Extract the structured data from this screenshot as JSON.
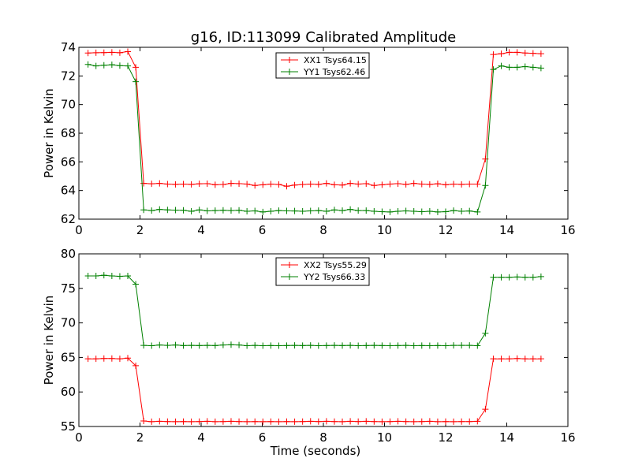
{
  "figure": {
    "title": "g16, ID:113099 Calibrated Amplitude"
  },
  "chart_data": [
    {
      "type": "line",
      "title": "g16, ID:113099 Calibrated Amplitude",
      "xlabel": "",
      "ylabel": "Power in Kelvin",
      "xlim": [
        0,
        16
      ],
      "ylim": [
        62,
        74
      ],
      "xticks": [
        0,
        2,
        4,
        6,
        8,
        10,
        12,
        14,
        16
      ],
      "yticks": [
        62,
        64,
        66,
        68,
        70,
        72,
        74
      ],
      "grid": false,
      "legend_position": "top-center",
      "x": [
        0.3,
        0.56,
        0.82,
        1.08,
        1.34,
        1.6,
        1.86,
        2.12,
        2.38,
        2.64,
        2.9,
        3.16,
        3.42,
        3.68,
        3.94,
        4.2,
        4.46,
        4.72,
        4.98,
        5.24,
        5.5,
        5.76,
        6.02,
        6.28,
        6.54,
        6.8,
        7.06,
        7.32,
        7.58,
        7.84,
        8.1,
        8.36,
        8.62,
        8.88,
        9.14,
        9.4,
        9.66,
        9.92,
        10.18,
        10.44,
        10.7,
        10.96,
        11.22,
        11.48,
        11.74,
        12.0,
        12.26,
        12.52,
        12.78,
        13.04,
        13.3,
        13.56,
        13.82,
        14.08,
        14.34,
        14.6,
        14.86,
        15.12
      ],
      "series": [
        {
          "name": "XX1 Tsys64.15",
          "color": "#ff0000",
          "values": [
            73.6,
            73.62,
            73.63,
            73.65,
            73.62,
            73.7,
            72.6,
            64.5,
            64.47,
            64.5,
            64.45,
            64.43,
            64.45,
            64.43,
            64.47,
            64.48,
            64.4,
            64.42,
            64.5,
            64.48,
            64.45,
            64.35,
            64.4,
            64.45,
            64.42,
            64.3,
            64.38,
            64.42,
            64.45,
            64.43,
            64.5,
            64.4,
            64.38,
            64.5,
            64.45,
            64.48,
            64.35,
            64.4,
            64.45,
            64.48,
            64.43,
            64.5,
            64.45,
            64.43,
            64.47,
            64.4,
            64.45,
            64.43,
            64.45,
            64.45,
            66.2,
            73.5,
            73.55,
            73.65,
            73.65,
            73.6,
            73.58,
            73.55
          ]
        },
        {
          "name": "YY1 Tsys62.46",
          "color": "#008000",
          "values": [
            72.8,
            72.7,
            72.75,
            72.78,
            72.72,
            72.7,
            71.6,
            62.65,
            62.6,
            62.68,
            62.65,
            62.63,
            62.62,
            62.55,
            62.65,
            62.58,
            62.6,
            62.62,
            62.6,
            62.62,
            62.55,
            62.58,
            62.5,
            62.55,
            62.6,
            62.58,
            62.57,
            62.55,
            62.58,
            62.6,
            62.55,
            62.65,
            62.6,
            62.68,
            62.6,
            62.6,
            62.55,
            62.52,
            62.5,
            62.55,
            62.58,
            62.55,
            62.52,
            62.55,
            62.5,
            62.52,
            62.6,
            62.55,
            62.57,
            62.5,
            64.35,
            72.45,
            72.7,
            72.6,
            72.6,
            72.65,
            72.6,
            72.55
          ]
        }
      ]
    },
    {
      "type": "line",
      "title": "",
      "xlabel": "Time (seconds)",
      "ylabel": "Power in Kelvin",
      "xlim": [
        0,
        16
      ],
      "ylim": [
        55,
        80
      ],
      "xticks": [
        0,
        2,
        4,
        6,
        8,
        10,
        12,
        14,
        16
      ],
      "yticks": [
        55,
        60,
        65,
        70,
        75,
        80
      ],
      "grid": false,
      "legend_position": "top-center",
      "x": [
        0.3,
        0.56,
        0.82,
        1.08,
        1.34,
        1.6,
        1.86,
        2.12,
        2.38,
        2.64,
        2.9,
        3.16,
        3.42,
        3.68,
        3.94,
        4.2,
        4.46,
        4.72,
        4.98,
        5.24,
        5.5,
        5.76,
        6.02,
        6.28,
        6.54,
        6.8,
        7.06,
        7.32,
        7.58,
        7.84,
        8.1,
        8.36,
        8.62,
        8.88,
        9.14,
        9.4,
        9.66,
        9.92,
        10.18,
        10.44,
        10.7,
        10.96,
        11.22,
        11.48,
        11.74,
        12.0,
        12.26,
        12.52,
        12.78,
        13.04,
        13.3,
        13.56,
        13.82,
        14.08,
        14.34,
        14.6,
        14.86,
        15.12
      ],
      "series": [
        {
          "name": "XX2 Tsys55.29",
          "color": "#ff0000",
          "values": [
            64.8,
            64.8,
            64.85,
            64.85,
            64.8,
            64.9,
            63.8,
            55.8,
            55.7,
            55.75,
            55.72,
            55.7,
            55.72,
            55.7,
            55.72,
            55.75,
            55.7,
            55.72,
            55.75,
            55.72,
            55.7,
            55.72,
            55.7,
            55.72,
            55.7,
            55.72,
            55.7,
            55.72,
            55.75,
            55.72,
            55.75,
            55.72,
            55.7,
            55.75,
            55.72,
            55.75,
            55.72,
            55.7,
            55.72,
            55.75,
            55.72,
            55.7,
            55.72,
            55.75,
            55.7,
            55.72,
            55.7,
            55.72,
            55.72,
            55.75,
            57.5,
            64.8,
            64.8,
            64.8,
            64.85,
            64.8,
            64.8,
            64.8
          ]
        },
        {
          "name": "YY2 Tsys66.33",
          "color": "#008000",
          "values": [
            76.8,
            76.8,
            76.9,
            76.8,
            76.75,
            76.8,
            75.6,
            66.75,
            66.7,
            66.8,
            66.75,
            66.8,
            66.72,
            66.75,
            66.72,
            66.75,
            66.72,
            66.8,
            66.85,
            66.8,
            66.7,
            66.75,
            66.7,
            66.72,
            66.7,
            66.72,
            66.75,
            66.72,
            66.75,
            66.7,
            66.72,
            66.75,
            66.72,
            66.75,
            66.7,
            66.72,
            66.75,
            66.72,
            66.7,
            66.72,
            66.75,
            66.7,
            66.72,
            66.7,
            66.72,
            66.7,
            66.75,
            66.75,
            66.75,
            66.7,
            68.5,
            76.6,
            76.6,
            76.6,
            76.65,
            76.6,
            76.6,
            76.7
          ]
        }
      ]
    }
  ]
}
